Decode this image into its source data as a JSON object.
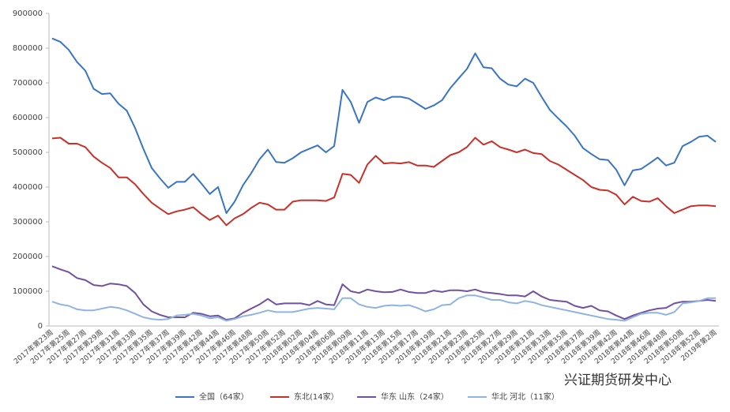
{
  "chart_data": {
    "type": "line",
    "categories": [
      "2017年第23周",
      null,
      "2017年第25周",
      null,
      "2017年第27周",
      null,
      "2017年第29周",
      null,
      "2017年第31周",
      null,
      "2017年第33周",
      null,
      "2017年第35周",
      null,
      "2017年第37周",
      null,
      "2017年第39周",
      null,
      "2017年第42周",
      null,
      "2017年第44周",
      null,
      "2017年第46周",
      null,
      "2017年第48周",
      null,
      "2017年第50周",
      null,
      "2017年第52周",
      null,
      "2018年第02周",
      null,
      "2018年第04周",
      null,
      "2018年第06周",
      null,
      "2018年第09周",
      null,
      "2018年第11周",
      null,
      "2018年第13周",
      null,
      "2018年第15周",
      null,
      "2018年第17周",
      null,
      "2018年第19周",
      null,
      "2018年第21周",
      null,
      "2018年第23周",
      null,
      "2018年第25周",
      null,
      "2018年第27周",
      null,
      "2018年第29周",
      null,
      "2018年第31周",
      null,
      "2018年第33周",
      null,
      "2018年第35周",
      null,
      "2018年第37周",
      null,
      "2018年第39周",
      null,
      "2018年第42周",
      null,
      "2018年第44周",
      null,
      "2018年第46周",
      null,
      "2018年第48周",
      null,
      "2018年第50周",
      null,
      "2018年第52周",
      null,
      "2019年第2周"
    ],
    "series": [
      {
        "name": "全国（64家）",
        "color": "#3a75c4",
        "values": [
          828000,
          818000,
          795000,
          760000,
          735000,
          683000,
          668000,
          670000,
          640000,
          620000,
          570000,
          510000,
          455000,
          425000,
          398000,
          415000,
          415000,
          438000,
          410000,
          380000,
          400000,
          325000,
          358000,
          405000,
          440000,
          480000,
          508000,
          472000,
          470000,
          483000,
          500000,
          510000,
          520000,
          500000,
          518000,
          680000,
          645000,
          585000,
          645000,
          658000,
          650000,
          660000,
          660000,
          655000,
          640000,
          625000,
          635000,
          650000,
          685000,
          713000,
          740000,
          785000,
          745000,
          742000,
          712000,
          695000,
          690000,
          712000,
          700000,
          660000,
          622000,
          598000,
          575000,
          548000,
          512000,
          495000,
          480000,
          478000,
          450000,
          405000,
          448000,
          452000,
          468000,
          485000,
          462000,
          470000,
          518000,
          530000,
          545000,
          548000,
          530000
        ]
      },
      {
        "name": "东北(14家）",
        "color": "#c8312a",
        "values": [
          540000,
          542000,
          525000,
          525000,
          515000,
          488000,
          470000,
          455000,
          428000,
          428000,
          408000,
          380000,
          355000,
          338000,
          322000,
          330000,
          335000,
          342000,
          322000,
          305000,
          318000,
          290000,
          310000,
          322000,
          340000,
          355000,
          350000,
          335000,
          335000,
          358000,
          362000,
          362000,
          362000,
          360000,
          370000,
          438000,
          435000,
          412000,
          465000,
          490000,
          468000,
          470000,
          468000,
          472000,
          462000,
          462000,
          458000,
          475000,
          492000,
          500000,
          515000,
          542000,
          522000,
          532000,
          515000,
          508000,
          500000,
          508000,
          498000,
          495000,
          475000,
          465000,
          450000,
          435000,
          420000,
          400000,
          392000,
          390000,
          378000,
          350000,
          372000,
          360000,
          358000,
          368000,
          345000,
          325000,
          335000,
          345000,
          347000,
          347000,
          345000
        ]
      },
      {
        "name": "华东 山东（24家）",
        "color": "#7052a0",
        "values": [
          172000,
          163000,
          155000,
          138000,
          132000,
          118000,
          115000,
          122000,
          120000,
          115000,
          95000,
          62000,
          42000,
          32000,
          25000,
          25000,
          25000,
          38000,
          35000,
          28000,
          30000,
          18000,
          22000,
          38000,
          50000,
          62000,
          78000,
          62000,
          65000,
          65000,
          65000,
          60000,
          72000,
          62000,
          60000,
          120000,
          100000,
          95000,
          105000,
          100000,
          97000,
          98000,
          105000,
          98000,
          95000,
          95000,
          102000,
          98000,
          103000,
          103000,
          100000,
          105000,
          97000,
          95000,
          92000,
          88000,
          88000,
          85000,
          100000,
          85000,
          75000,
          72000,
          70000,
          58000,
          52000,
          58000,
          45000,
          42000,
          30000,
          20000,
          30000,
          38000,
          45000,
          50000,
          52000,
          65000,
          70000,
          70000,
          72000,
          75000,
          72000
        ]
      },
      {
        "name": "华北 河北（11家）",
        "color": "#8fb4e0",
        "values": [
          70000,
          62000,
          58000,
          48000,
          45000,
          45000,
          50000,
          55000,
          52000,
          45000,
          35000,
          25000,
          20000,
          18000,
          20000,
          30000,
          32000,
          35000,
          30000,
          22000,
          25000,
          15000,
          20000,
          28000,
          32000,
          38000,
          45000,
          40000,
          40000,
          40000,
          45000,
          50000,
          52000,
          50000,
          48000,
          80000,
          80000,
          62000,
          55000,
          52000,
          58000,
          60000,
          58000,
          60000,
          52000,
          42000,
          48000,
          60000,
          62000,
          80000,
          88000,
          88000,
          82000,
          75000,
          75000,
          68000,
          65000,
          72000,
          68000,
          60000,
          55000,
          50000,
          45000,
          40000,
          35000,
          30000,
          25000,
          20000,
          18000,
          15000,
          25000,
          35000,
          38000,
          38000,
          32000,
          40000,
          65000,
          68000,
          72000,
          80000,
          80000
        ]
      }
    ],
    "ylim": [
      0,
      900000
    ],
    "yticks": [
      0,
      100000,
      200000,
      300000,
      400000,
      500000,
      600000,
      700000,
      800000,
      900000
    ],
    "grid": false,
    "legend": "bottom",
    "watermark": "兴证期货研发中心"
  }
}
